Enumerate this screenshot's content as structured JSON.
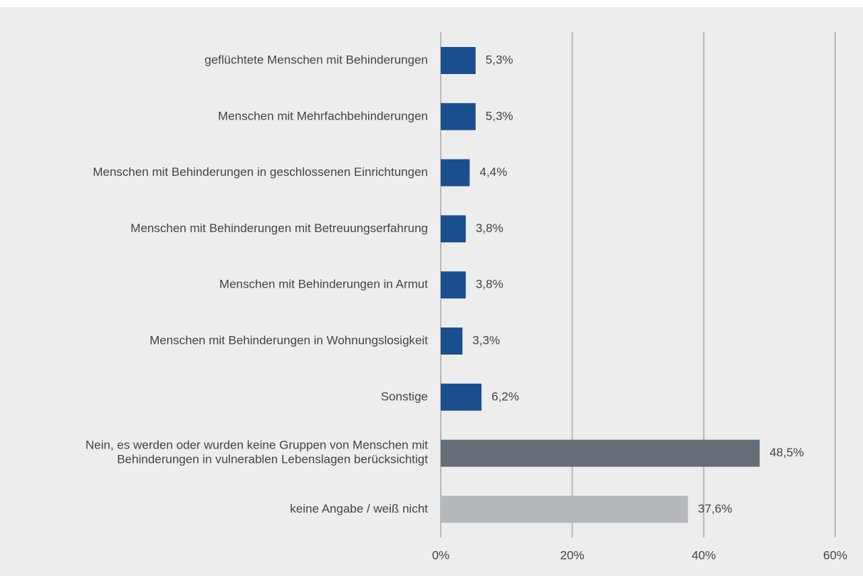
{
  "chart_data": {
    "type": "barh",
    "categories": [
      "geflüchtete Menschen mit Behinderungen",
      "Menschen mit Mehrfachbehinderungen",
      "Menschen mit Behinderungen in geschlossenen Einrichtungen",
      "Menschen mit Behinderungen mit Betreuungserfahrung",
      "Menschen mit Behinderungen in Armut",
      "Menschen mit Behinderungen in Wohnungslosigkeit",
      "Sonstige",
      "Nein, es werden oder wurden keine Gruppen von Menschen mit\nBehinderungen in vulnerablen Lebenslagen berücksichtigt",
      "keine Angabe / weiß nicht"
    ],
    "values": [
      5.3,
      5.3,
      4.4,
      3.8,
      3.8,
      3.3,
      6.2,
      48.5,
      37.6
    ],
    "value_labels": [
      "5,3%",
      "5,3%",
      "4,4%",
      "3,8%",
      "3,8%",
      "3,3%",
      "6,2%",
      "48,5%",
      "37,6%"
    ],
    "colors": [
      "#1a4f8f",
      "#1a4f8f",
      "#1a4f8f",
      "#1a4f8f",
      "#1a4f8f",
      "#1a4f8f",
      "#1a4f8f",
      "#656d76",
      "#b5b9bd"
    ],
    "xlim": [
      0,
      60
    ],
    "xticks": [
      {
        "value": 0,
        "label": "0%"
      },
      {
        "value": 20,
        "label": "20%"
      },
      {
        "value": 40,
        "label": "40%"
      },
      {
        "value": 60,
        "label": "60%"
      }
    ],
    "grid": true
  }
}
